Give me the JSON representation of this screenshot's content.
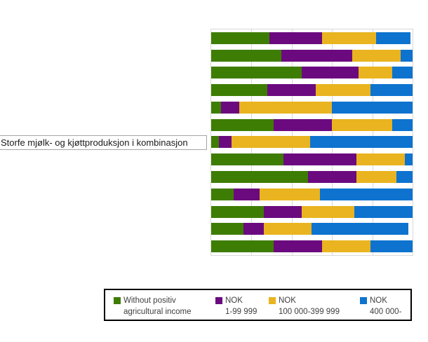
{
  "chart_data": {
    "type": "bar",
    "orientation": "horizontal",
    "stacked": true,
    "unit": "percent",
    "title": "",
    "xlabel": "",
    "ylabel": "",
    "xlim": [
      0,
      100
    ],
    "gridlines_percent": [
      20,
      40,
      60,
      80
    ],
    "grid": "on",
    "legend_position": "bottom",
    "categories": [
      "",
      "",
      "",
      "",
      "",
      "",
      "Storfe mjølk- og kjøttproduksjon i kombinasjon",
      "",
      "",
      "",
      "",
      "",
      ""
    ],
    "series": [
      {
        "name": "Without positiv agricultural income",
        "color": "#3e7d04",
        "values": [
          29,
          35,
          45,
          28,
          5,
          31,
          4,
          36,
          48,
          11,
          26,
          16,
          31
        ]
      },
      {
        "name": "NOK 1-99 999",
        "color": "#6b0a7f",
        "values": [
          26,
          35,
          28,
          24,
          9,
          29,
          6,
          36,
          24,
          13,
          19,
          10,
          24
        ]
      },
      {
        "name": "NOK 100 000-399 999",
        "color": "#e9b420",
        "values": [
          27,
          24,
          17,
          27,
          46,
          30,
          39,
          24,
          20,
          30,
          26,
          24,
          24
        ]
      },
      {
        "name": "NOK 400 000-",
        "color": "#0d73cf",
        "values": [
          17,
          6,
          10,
          21,
          40,
          10,
          51,
          4,
          8,
          46,
          29,
          48,
          21
        ]
      }
    ],
    "legend_items": [
      {
        "line1": "Without positiv",
        "line2": "agricultural income",
        "color": "#3e7d04"
      },
      {
        "line1": "NOK",
        "line2": "1-99 999",
        "color": "#6b0a7f"
      },
      {
        "line1": "NOK",
        "line2": "100 000-399 999",
        "color": "#e9b420"
      },
      {
        "line1": "NOK",
        "line2": "400 000-",
        "color": "#0d73cf"
      }
    ],
    "colors": {
      "gridline": "#d9d9d9",
      "plot_border": "#d9d9d9",
      "background": "#ffffff"
    }
  }
}
